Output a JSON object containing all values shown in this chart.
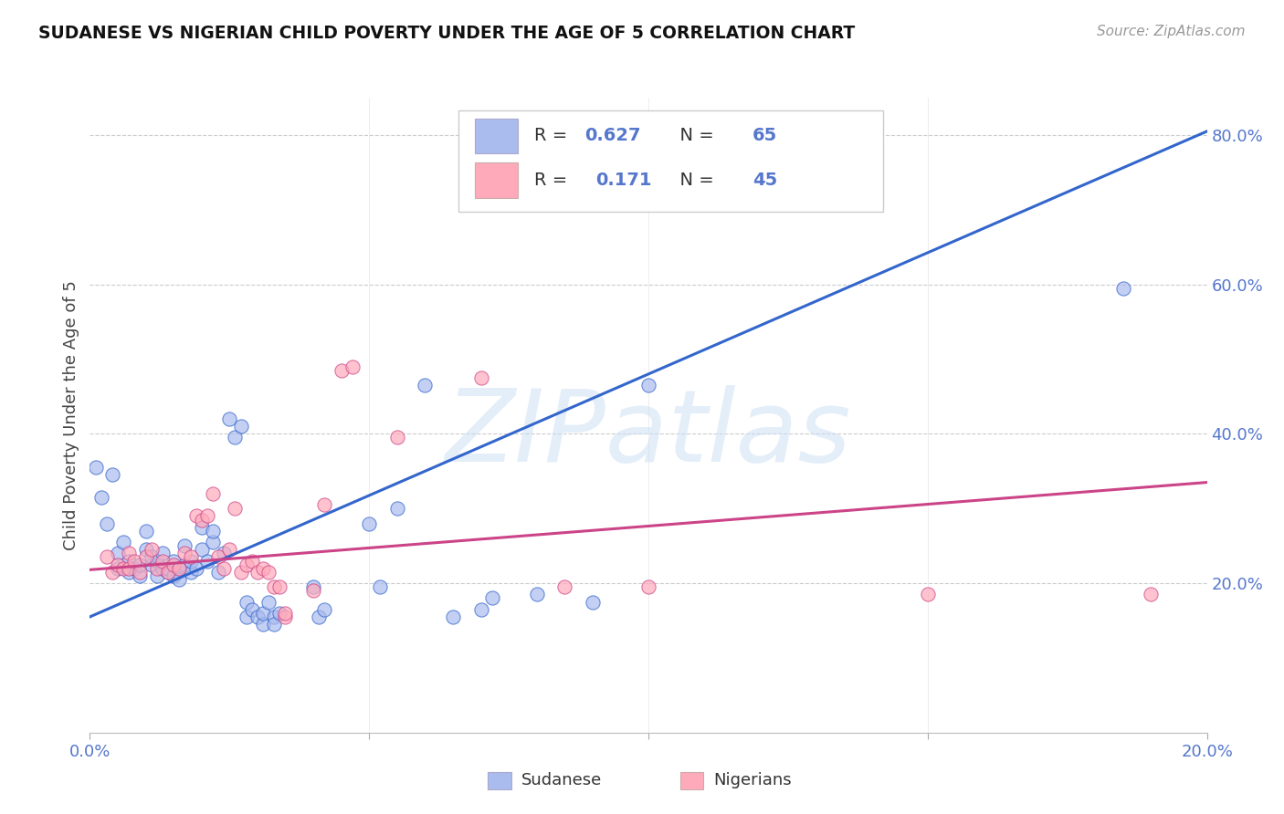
{
  "title": "SUDANESE VS NIGERIAN CHILD POVERTY UNDER THE AGE OF 5 CORRELATION CHART",
  "source": "Source: ZipAtlas.com",
  "ylabel": "Child Poverty Under the Age of 5",
  "background_color": "#ffffff",
  "watermark": "ZIPatlas",
  "legend": {
    "sudanese_label": "Sudanese",
    "nigerian_label": "Nigerians",
    "sudanese_R": "0.627",
    "sudanese_N": "65",
    "nigerian_R": "0.171",
    "nigerian_N": "45"
  },
  "blue_color": "#aabbee",
  "pink_color": "#ffaabb",
  "blue_line_color": "#3366cc",
  "pink_line_color": "#cc4488",
  "axis_tick_color": "#5577cc",
  "xlim": [
    0.0,
    0.2
  ],
  "ylim": [
    0.0,
    0.85
  ],
  "xticks_show": [
    0.0,
    0.2
  ],
  "xticks_minor": [
    0.05,
    0.1,
    0.15
  ],
  "yticks_right": [
    0.2,
    0.4,
    0.6,
    0.8
  ],
  "blue_line": {
    "x0": 0.0,
    "y0": 0.155,
    "x1": 0.2,
    "y1": 0.805
  },
  "pink_line": {
    "x0": 0.0,
    "y0": 0.218,
    "x1": 0.2,
    "y1": 0.335
  },
  "sudanese_points": [
    [
      0.001,
      0.355
    ],
    [
      0.002,
      0.315
    ],
    [
      0.003,
      0.28
    ],
    [
      0.004,
      0.345
    ],
    [
      0.005,
      0.24
    ],
    [
      0.005,
      0.22
    ],
    [
      0.006,
      0.255
    ],
    [
      0.007,
      0.23
    ],
    [
      0.007,
      0.215
    ],
    [
      0.008,
      0.22
    ],
    [
      0.009,
      0.21
    ],
    [
      0.009,
      0.225
    ],
    [
      0.01,
      0.245
    ],
    [
      0.01,
      0.27
    ],
    [
      0.011,
      0.225
    ],
    [
      0.011,
      0.235
    ],
    [
      0.012,
      0.23
    ],
    [
      0.012,
      0.21
    ],
    [
      0.013,
      0.22
    ],
    [
      0.013,
      0.24
    ],
    [
      0.014,
      0.215
    ],
    [
      0.014,
      0.22
    ],
    [
      0.015,
      0.23
    ],
    [
      0.015,
      0.21
    ],
    [
      0.016,
      0.22
    ],
    [
      0.016,
      0.205
    ],
    [
      0.017,
      0.25
    ],
    [
      0.017,
      0.225
    ],
    [
      0.018,
      0.215
    ],
    [
      0.018,
      0.23
    ],
    [
      0.019,
      0.22
    ],
    [
      0.02,
      0.245
    ],
    [
      0.02,
      0.275
    ],
    [
      0.021,
      0.23
    ],
    [
      0.022,
      0.255
    ],
    [
      0.022,
      0.27
    ],
    [
      0.023,
      0.215
    ],
    [
      0.024,
      0.24
    ],
    [
      0.025,
      0.42
    ],
    [
      0.026,
      0.395
    ],
    [
      0.027,
      0.41
    ],
    [
      0.028,
      0.155
    ],
    [
      0.028,
      0.175
    ],
    [
      0.029,
      0.165
    ],
    [
      0.03,
      0.155
    ],
    [
      0.031,
      0.145
    ],
    [
      0.031,
      0.16
    ],
    [
      0.032,
      0.175
    ],
    [
      0.033,
      0.155
    ],
    [
      0.033,
      0.145
    ],
    [
      0.034,
      0.16
    ],
    [
      0.04,
      0.195
    ],
    [
      0.041,
      0.155
    ],
    [
      0.042,
      0.165
    ],
    [
      0.05,
      0.28
    ],
    [
      0.052,
      0.195
    ],
    [
      0.055,
      0.3
    ],
    [
      0.06,
      0.465
    ],
    [
      0.065,
      0.155
    ],
    [
      0.07,
      0.165
    ],
    [
      0.072,
      0.18
    ],
    [
      0.08,
      0.185
    ],
    [
      0.09,
      0.175
    ],
    [
      0.1,
      0.465
    ],
    [
      0.185,
      0.595
    ]
  ],
  "nigerian_points": [
    [
      0.003,
      0.235
    ],
    [
      0.004,
      0.215
    ],
    [
      0.005,
      0.225
    ],
    [
      0.006,
      0.22
    ],
    [
      0.007,
      0.24
    ],
    [
      0.007,
      0.22
    ],
    [
      0.008,
      0.23
    ],
    [
      0.009,
      0.215
    ],
    [
      0.01,
      0.235
    ],
    [
      0.011,
      0.245
    ],
    [
      0.012,
      0.22
    ],
    [
      0.013,
      0.23
    ],
    [
      0.014,
      0.215
    ],
    [
      0.015,
      0.225
    ],
    [
      0.016,
      0.22
    ],
    [
      0.017,
      0.24
    ],
    [
      0.018,
      0.235
    ],
    [
      0.019,
      0.29
    ],
    [
      0.02,
      0.285
    ],
    [
      0.021,
      0.29
    ],
    [
      0.022,
      0.32
    ],
    [
      0.023,
      0.235
    ],
    [
      0.024,
      0.22
    ],
    [
      0.025,
      0.245
    ],
    [
      0.026,
      0.3
    ],
    [
      0.027,
      0.215
    ],
    [
      0.028,
      0.225
    ],
    [
      0.029,
      0.23
    ],
    [
      0.03,
      0.215
    ],
    [
      0.031,
      0.22
    ],
    [
      0.032,
      0.215
    ],
    [
      0.033,
      0.195
    ],
    [
      0.034,
      0.195
    ],
    [
      0.035,
      0.155
    ],
    [
      0.035,
      0.16
    ],
    [
      0.04,
      0.19
    ],
    [
      0.042,
      0.305
    ],
    [
      0.045,
      0.485
    ],
    [
      0.047,
      0.49
    ],
    [
      0.055,
      0.395
    ],
    [
      0.07,
      0.475
    ],
    [
      0.085,
      0.195
    ],
    [
      0.1,
      0.195
    ],
    [
      0.15,
      0.185
    ],
    [
      0.19,
      0.185
    ]
  ]
}
